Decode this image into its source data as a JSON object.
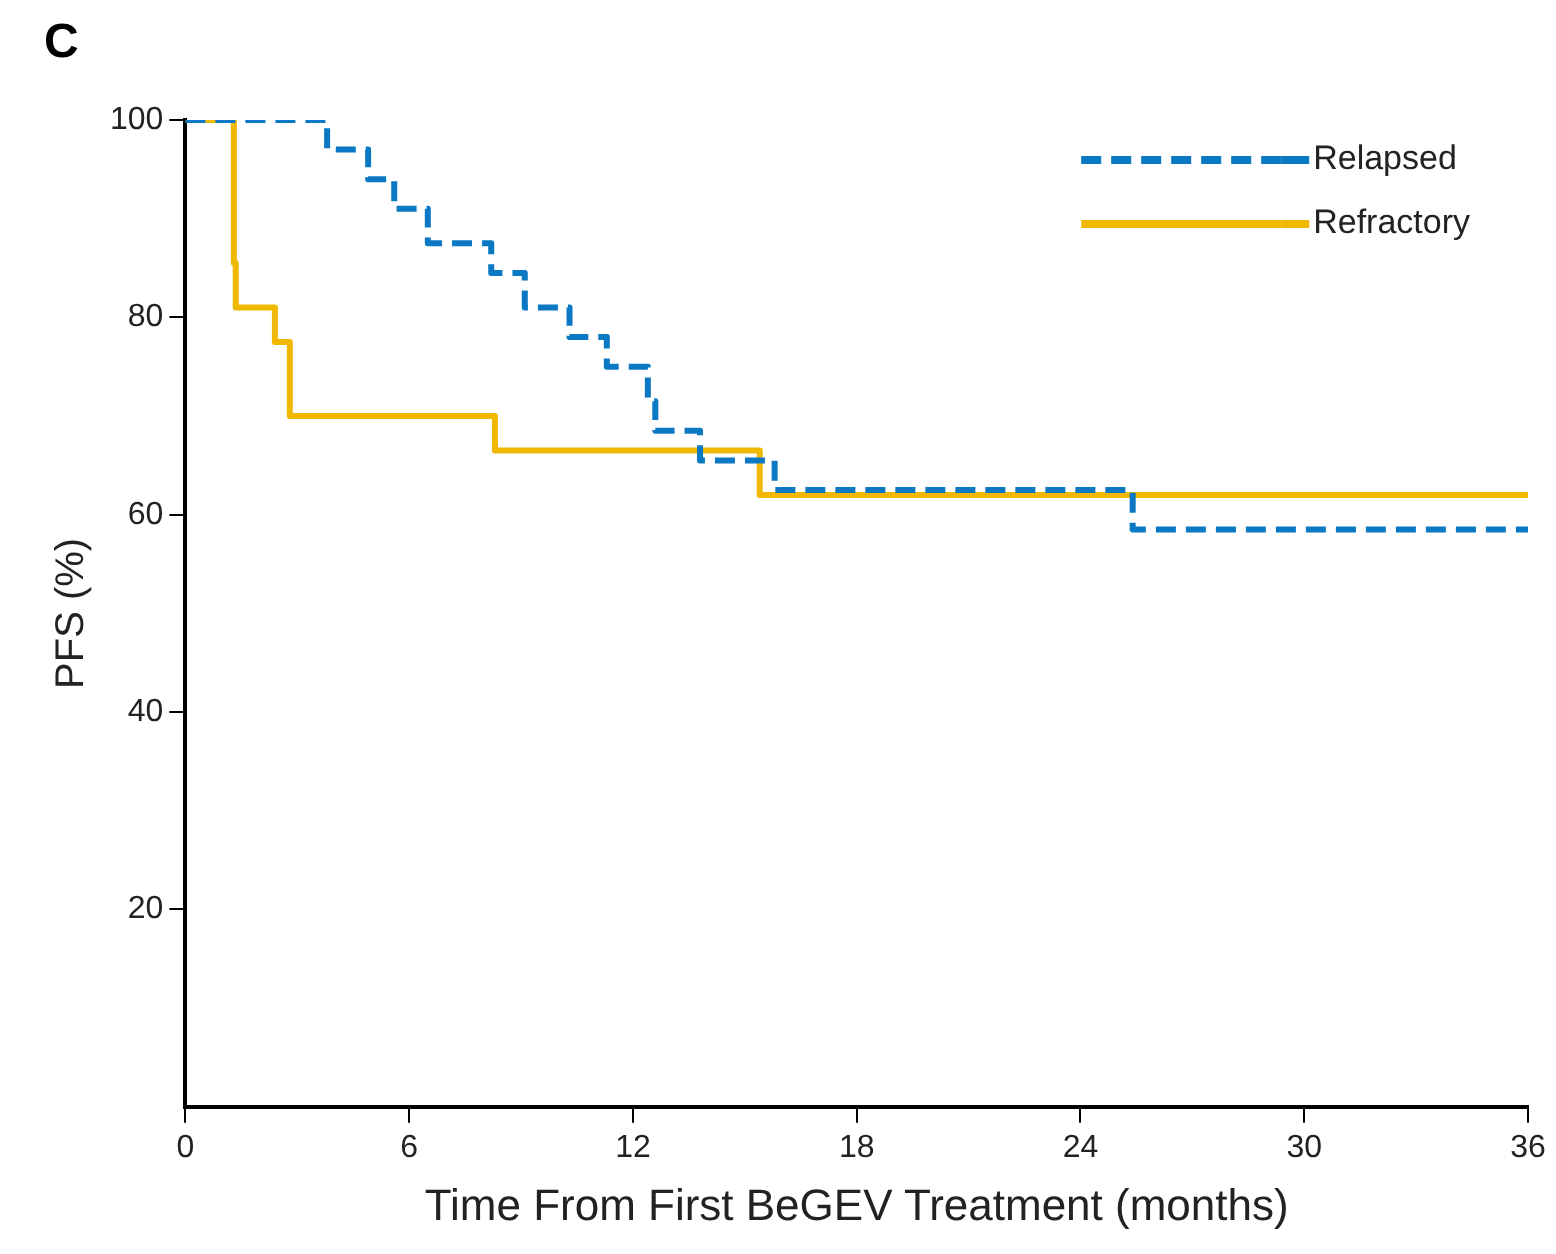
{
  "chart_data": {
    "type": "step",
    "title": "C",
    "xlabel": "Time From First BeGEV Treatment (months)",
    "ylabel": "PFS (%)",
    "xlim": [
      0,
      36
    ],
    "xticks": [
      0,
      6,
      12,
      18,
      24,
      30,
      36
    ],
    "ylim": [
      0,
      100
    ],
    "yticks": [
      20,
      40,
      60,
      80,
      100
    ],
    "grid": false,
    "legend": "top right",
    "marker": "none",
    "series": [
      {
        "name": "Relapsed",
        "color": "#0a78c2",
        "line_style": "dashed",
        "x": [
          0,
          3.8,
          4.9,
          5.6,
          6.5,
          8.2,
          9.1,
          10.3,
          11.3,
          12.4,
          12.6,
          13.8,
          15.8,
          25.4,
          36
        ],
        "values": [
          100,
          97,
          94,
          91,
          87.5,
          84.5,
          81,
          78,
          75,
          71.5,
          68.5,
          65.5,
          62.5,
          58.5,
          58.5
        ]
      },
      {
        "name": "Refractory",
        "color": "#f0b800",
        "line_style": "solid",
        "x": [
          0,
          1.3,
          1.35,
          2.4,
          2.8,
          8.3,
          15.4,
          36
        ],
        "values": [
          100,
          85.5,
          81,
          77.5,
          70,
          66.5,
          62,
          62
        ]
      }
    ]
  }
}
